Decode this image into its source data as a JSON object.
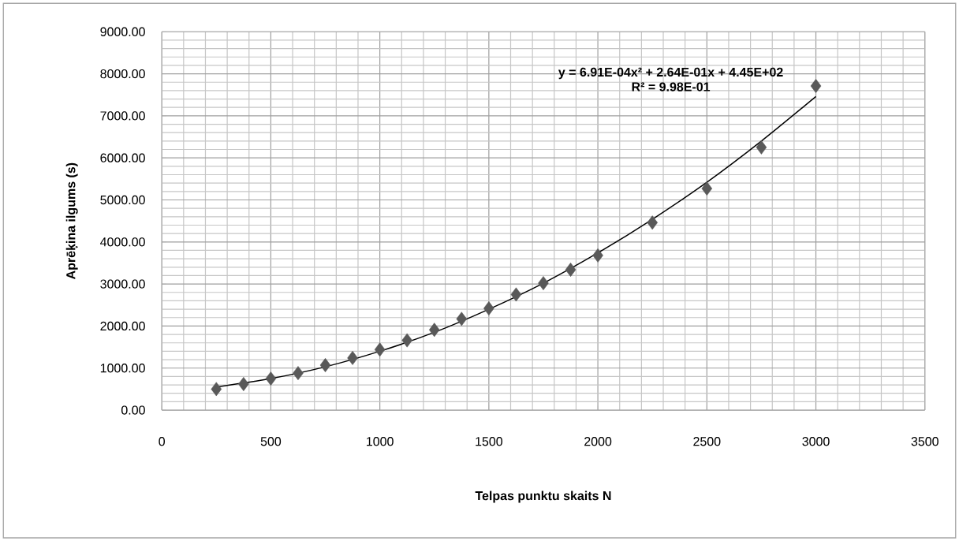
{
  "chart_data": {
    "type": "scatter",
    "xlabel": "Telpas punktu skaits N",
    "ylabel": "Aprēķina ilgums (s)",
    "annotations": [
      "**y = 6.91E-04x² + 2.64E-01x + 4.45E+02**",
      "**R² = 9.98E-01**"
    ],
    "series": [
      {
        "color": "#595959",
        "marker": "diamond",
        "x": [
          250,
          375,
          500,
          625,
          750,
          875,
          1000,
          1125,
          1250,
          1375,
          1500,
          1625,
          1750,
          1875,
          2000,
          2250,
          2500,
          2750,
          3000
        ],
        "values": [
          500,
          620,
          750,
          880,
          1070,
          1240,
          1440,
          1660,
          1910,
          2170,
          2420,
          2750,
          3020,
          3340,
          3680,
          4460,
          5270,
          6250,
          7710
        ]
      },
      {
        "type": "line",
        "color": "#000000",
        "marker": "none",
        "line_style": "solid",
        "x": [
          250,
          500,
          750,
          1000,
          1250,
          1500,
          1750,
          2000,
          2250,
          2500,
          2750,
          3000
        ],
        "values": [
          550,
          750,
          1030,
          1400,
          1850,
          2400,
          3020,
          3740,
          4540,
          5420,
          6400,
          7460
        ]
      }
    ],
    "xlim": [
      0,
      3500
    ],
    "xticks": [
      0,
      500,
      1000,
      1500,
      2000,
      2500,
      3000,
      3500
    ],
    "ylim": [
      0,
      9000
    ],
    "yticks": [
      {
        "value": 0,
        "label": "0.00"
      },
      {
        "value": 1000,
        "label": "1000.00"
      },
      {
        "value": 2000,
        "label": "2000.00"
      },
      {
        "value": 3000,
        "label": "3000.00"
      },
      {
        "value": 4000,
        "label": "4000.00"
      },
      {
        "value": 5000,
        "label": "5000.00"
      },
      {
        "value": 6000,
        "label": "6000.00"
      },
      {
        "value": 7000,
        "label": "7000.00"
      },
      {
        "value": 8000,
        "label": "8000.00"
      },
      {
        "value": 9000,
        "label": "9000.00"
      }
    ],
    "grid": true
  }
}
